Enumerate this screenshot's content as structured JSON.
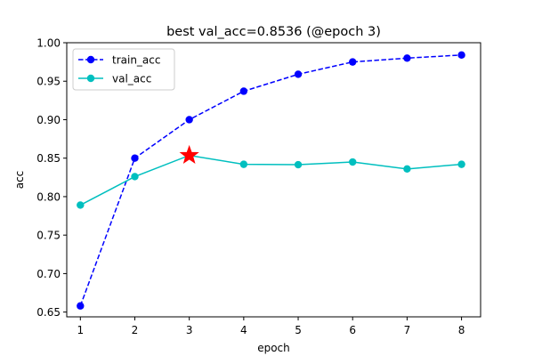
{
  "chart_data": {
    "type": "line",
    "title": "best val_acc=0.8536 (@epoch 3)",
    "xlabel": "epoch",
    "ylabel": "acc",
    "x": [
      1,
      2,
      3,
      4,
      5,
      6,
      7,
      8
    ],
    "xlim": [
      0.75,
      8.35
    ],
    "ylim": [
      0.6438,
      1.0
    ],
    "xticks": [
      "1",
      "2",
      "3",
      "4",
      "5",
      "6",
      "7",
      "8"
    ],
    "yticks": [
      "0.65",
      "0.70",
      "0.75",
      "0.80",
      "0.85",
      "0.90",
      "0.95",
      "1.00"
    ],
    "grid": false,
    "legend_position": "top-left",
    "series": [
      {
        "name": "train_acc",
        "values": [
          0.658,
          0.85,
          0.9,
          0.937,
          0.959,
          0.975,
          0.98,
          0.984
        ],
        "color": "#0000ff",
        "line_style": "dashed",
        "marker": "circle"
      },
      {
        "name": "val_acc",
        "values": [
          0.789,
          0.826,
          0.8536,
          0.842,
          0.8415,
          0.845,
          0.836,
          0.842
        ],
        "color": "#00bfbf",
        "line_style": "solid",
        "marker": "circle"
      }
    ],
    "highlight": {
      "x": 3,
      "y": 0.8536,
      "marker": "star",
      "color": "#ff0000"
    }
  }
}
